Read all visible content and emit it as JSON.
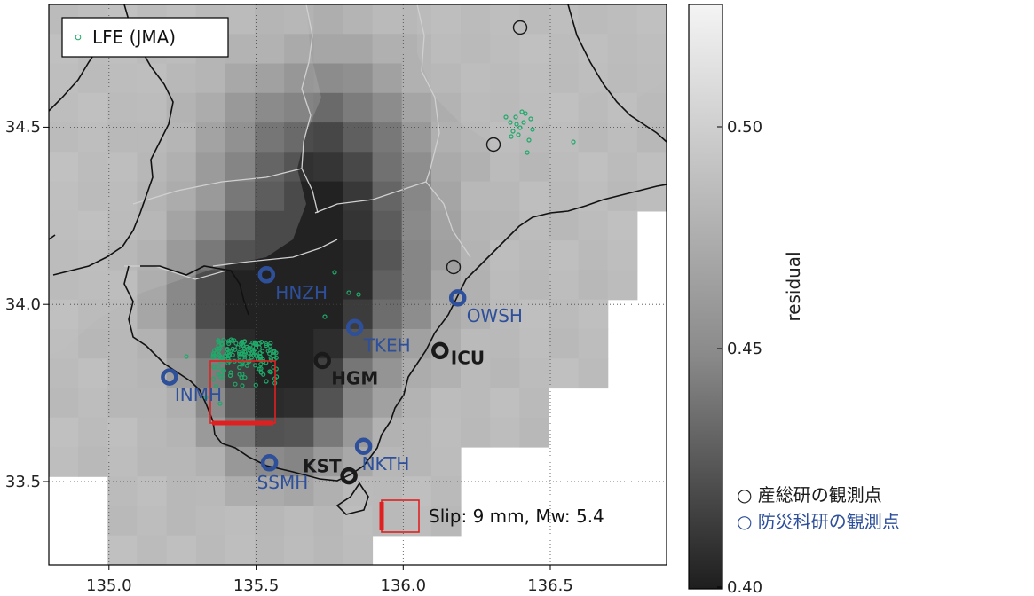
{
  "map": {
    "lon_range": [
      134.8,
      136.9
    ],
    "lat_range": [
      33.25,
      34.95
    ],
    "lon_ticks": [
      "135.0",
      "135.5",
      "136.0",
      "136.5"
    ],
    "lat_ticks": [
      "33.5",
      "34.0",
      "34.5"
    ],
    "legend": {
      "marker_label": "LFE (JMA)",
      "marker_color": "#1faa6a"
    },
    "slip_box_label": "Slip: 9 mm, Mw: 5.4",
    "fault_color": "#e02020",
    "coast_color": "#111111",
    "border_color": "#c8c8c8"
  },
  "colorbar": {
    "label": "residual",
    "ticks": [
      "0.50",
      "0.45",
      "0.40"
    ],
    "range": [
      0.4,
      0.52
    ]
  },
  "stations": [
    {
      "name": "HNZH",
      "network": "NIED",
      "color": "#2e4f9a",
      "lon": 135.54,
      "lat": 34.13
    },
    {
      "name": "OWSH",
      "network": "NIED",
      "color": "#2e4f9a",
      "lon": 136.19,
      "lat": 34.06
    },
    {
      "name": "TKEH",
      "network": "NIED",
      "color": "#2e4f9a",
      "lon": 135.84,
      "lat": 33.97
    },
    {
      "name": "INMH",
      "network": "NIED",
      "color": "#2e4f9a",
      "lon": 135.21,
      "lat": 33.82
    },
    {
      "name": "NKTH",
      "network": "NIED",
      "color": "#2e4f9a",
      "lon": 135.87,
      "lat": 33.61
    },
    {
      "name": "SSMH",
      "network": "NIED",
      "color": "#2e4f9a",
      "lon": 135.55,
      "lat": 33.56
    },
    {
      "name": "HGM",
      "network": "AIST",
      "color": "#1a1a1a",
      "lon": 135.73,
      "lat": 33.87
    },
    {
      "name": "ICU",
      "network": "AIST",
      "color": "#1a1a1a",
      "lon": 136.13,
      "lat": 33.9
    },
    {
      "name": "KST",
      "network": "AIST",
      "color": "#1a1a1a",
      "lon": 135.82,
      "lat": 33.52
    }
  ],
  "notes": {
    "aist": "○ 産総研の観測点",
    "nied": "○ 防災科研の観測点",
    "aist_color": "#1a1a1a",
    "nied_color": "#2e4f9a"
  }
}
